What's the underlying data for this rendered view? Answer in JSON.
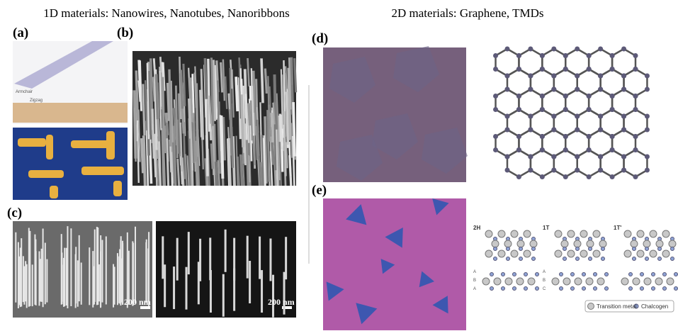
{
  "headings": {
    "left": "1D materials: Nanowires, Nanotubes, Nanoribbons",
    "right": "2D materials: Graphene, TMDs"
  },
  "panels": [
    {
      "label": "(a)",
      "annotations": [
        "Armchair",
        "Zigzag"
      ]
    },
    {
      "label": "(b)"
    },
    {
      "label": "(c)",
      "scale_bars": [
        "200 nm",
        "200 nm"
      ]
    },
    {
      "label": "(d)"
    },
    {
      "label": "(e)",
      "phases": [
        "2H",
        "1T",
        "1T'"
      ],
      "stacking": [
        [
          "A",
          "B",
          "A"
        ],
        [
          "A",
          "B",
          "C"
        ]
      ],
      "legend": [
        "Transition metal",
        "Chalcogen"
      ]
    }
  ]
}
